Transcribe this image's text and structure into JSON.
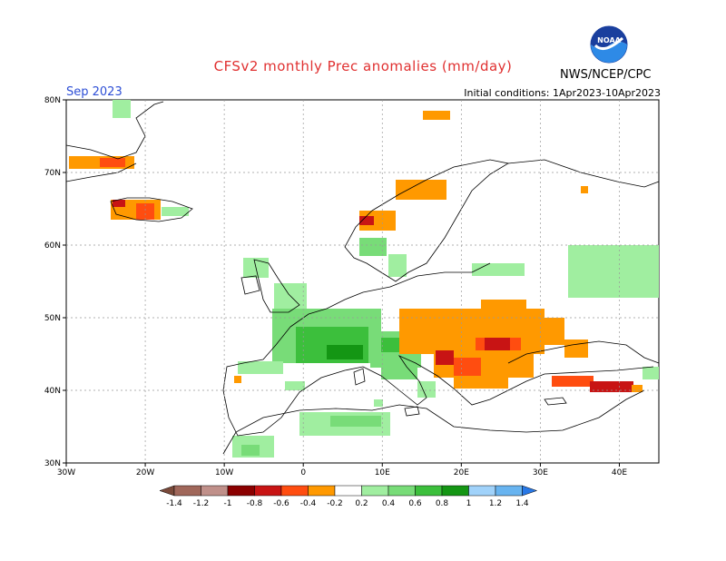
{
  "title": "CFSv2 monthly Prec anomalies (mm/day)",
  "forecast_month": "Sep 2023",
  "initial_conditions": "Initial conditions: 1Apr2023-10Apr2023",
  "agency": "NWS/NCEP/CPC",
  "logo_text": "NOAA",
  "map": {
    "lon_ticks": [
      "30W",
      "20W",
      "10W",
      "0",
      "10E",
      "20E",
      "30E",
      "40E"
    ],
    "lat_ticks": [
      "80N",
      "70N",
      "60N",
      "50N",
      "40N",
      "30N"
    ],
    "grid": true
  },
  "colorbar": {
    "labels": [
      "-1.4",
      "-1.2",
      "-1",
      "-0.8",
      "-0.6",
      "-0.4",
      "-0.2",
      "0.2",
      "0.4",
      "0.6",
      "0.8",
      "1",
      "1.2",
      "1.4"
    ],
    "colors": [
      "#7a4a3a",
      "#a0675a",
      "#c0908a",
      "#8b0000",
      "#c81414",
      "#ff4d10",
      "#ff9900",
      "#ffffff",
      "#a0eea0",
      "#78dc78",
      "#3cbf3c",
      "#149614",
      "#a0d2fa",
      "#68b4f0",
      "#2878e6"
    ]
  },
  "anomaly_colors": {
    "light_green": "#a0eea0",
    "green": "#78dc78",
    "medium_green": "#3cbf3c",
    "dark_green": "#149614",
    "orange": "#ff9900",
    "red_orange": "#ff4d10",
    "red": "#c81414",
    "dark_red": "#8b0000"
  }
}
